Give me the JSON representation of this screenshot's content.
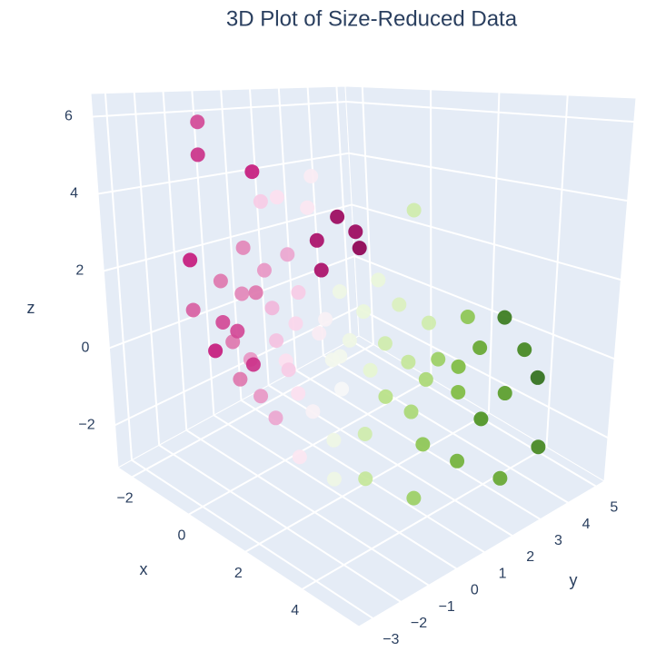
{
  "chart_data": {
    "type": "scatter3d",
    "title": "3D Plot of Size-Reduced Data",
    "x_label": "x",
    "y_label": "y",
    "z_label": "z",
    "xlim": [
      -2.5,
      6
    ],
    "ylim": [
      -3.5,
      5.3
    ],
    "zlim": [
      -3.1,
      6.6
    ],
    "xticks": [
      {
        "value": -2,
        "label": "−2"
      },
      0,
      2,
      4
    ],
    "yticks": [
      {
        "value": -3,
        "label": "−3"
      },
      {
        "value": -2,
        "label": "−2"
      },
      {
        "value": -1,
        "label": "−1"
      },
      0,
      1,
      2,
      3,
      4,
      5
    ],
    "zticks": [
      {
        "value": -2,
        "label": "−2"
      },
      0,
      2,
      4,
      6
    ],
    "grid": true,
    "colorscale": [
      "#8e0152",
      "#c51b7d",
      "#de77ae",
      "#f1b6da",
      "#fde0ef",
      "#f7f7f7",
      "#e6f5d0",
      "#b8e186",
      "#7fbc41",
      "#4d9221",
      "#276419"
    ],
    "clim": [
      -1,
      1
    ],
    "series": [
      {
        "x": [
          -1.5,
          -2.0,
          -0.5,
          -1.0,
          -0.2,
          0.5,
          0.8,
          1.2,
          0.3,
          -1.8,
          -1.2,
          -0.8,
          -1.5,
          -1.0,
          -0.5,
          -1.2,
          -0.3,
          0.0,
          -0.8,
          0.2,
          -1.5,
          0.5,
          -0.5,
          0.0,
          0.3,
          0.6,
          -0.2,
          0.8,
          1.0,
          0.2,
          -1.0,
          1.5,
          0.8,
          -0.6,
          0.4,
          1.0,
          1.5,
          1.2,
          2.0,
          1.8,
          1.0,
          2.2,
          1.3,
          0.5,
          1.6,
          2.5,
          -0.3,
          0.2,
          2.5,
          2.8,
          3.0,
          2.2,
          3.2,
          3.5,
          2.8,
          3.8,
          4.0,
          4.2,
          3.5,
          4.5,
          4.8,
          5.0,
          5.2,
          4.5,
          5.5,
          4.0,
          3.0,
          2.5,
          3.8,
          2.0,
          1.8,
          2.2,
          3.3,
          4.6,
          5.8
        ],
        "y": [
          -1.0,
          -0.5,
          -0.3,
          0.5,
          0.2,
          1.5,
          1.8,
          1.5,
          1.0,
          -1.2,
          -0.8,
          -0.5,
          -1.5,
          -1.0,
          -1.2,
          -0.3,
          -0.8,
          -1.5,
          -0.2,
          -1.0,
          -0.8,
          -0.8,
          0.0,
          -0.3,
          -0.5,
          0.0,
          0.5,
          0.6,
          -0.5,
          0.3,
          0.2,
          -1.0,
          -0.7,
          -0.6,
          -0.2,
          0.5,
          0.2,
          0.8,
          0.0,
          0.5,
          1.0,
          -0.5,
          -0.3,
          0.8,
          1.2,
          -0.8,
          1.5,
          0.8,
          1.0,
          1.5,
          0.5,
          1.8,
          1.2,
          1.8,
          2.2,
          1.0,
          2.0,
          2.5,
          2.8,
          1.5,
          2.8,
          3.2,
          3.5,
          3.0,
          2.0,
          0.5,
          -0.2,
          0.3,
          2.2,
          2.5,
          1.5,
          0.8,
          1.6,
          2.2,
          3.0
        ],
        "z": [
          5.8,
          4.8,
          4.5,
          3.5,
          3.8,
          3.2,
          2.8,
          2.5,
          2.6,
          2.0,
          1.5,
          1.2,
          0.8,
          0.5,
          0.2,
          0.0,
          -0.3,
          -0.5,
          -0.8,
          -1.0,
          -0.5,
          -1.5,
          1.8,
          1.0,
          0.3,
          1.5,
          2.2,
          2.0,
          -0.8,
          0.5,
          1.0,
          -2.0,
          0.0,
          2.5,
          -0.5,
          0.8,
          0.0,
          1.5,
          -0.5,
          0.5,
          -0.3,
          -1.5,
          -1.2,
          0.2,
          1.0,
          -2.2,
          4.2,
          3.5,
          0.5,
          0.0,
          -0.5,
          1.2,
          -1.0,
          0.2,
          0.8,
          -1.5,
          -0.5,
          0.5,
          1.0,
          -1.8,
          -0.5,
          0.5,
          -0.2,
          1.2,
          -2.0,
          -2.5,
          -2.2,
          -1.5,
          0.0,
          3.5,
          1.8,
          -0.2,
          -0.3,
          -1.0,
          -1.5
        ],
        "color_values": [
          -0.7,
          -0.75,
          -0.8,
          -0.3,
          -0.2,
          -0.95,
          -0.95,
          -1.0,
          -0.9,
          -0.8,
          -0.6,
          -0.55,
          -0.65,
          -0.7,
          -0.6,
          -0.7,
          -0.5,
          -0.6,
          -0.75,
          -0.5,
          -0.8,
          -0.45,
          -0.5,
          -0.4,
          -0.35,
          -0.3,
          -0.45,
          -0.9,
          -0.2,
          -0.25,
          -0.6,
          -0.15,
          -0.2,
          -0.55,
          -0.3,
          -0.05,
          0.05,
          0.1,
          0.0,
          0.1,
          0.05,
          0.1,
          -0.05,
          -0.1,
          0.15,
          0.1,
          -0.1,
          -0.15,
          0.3,
          0.35,
          0.4,
          0.25,
          0.45,
          0.5,
          0.3,
          0.55,
          0.6,
          0.7,
          0.55,
          0.65,
          0.75,
          0.85,
          0.95,
          0.9,
          0.7,
          0.5,
          0.35,
          0.3,
          0.6,
          0.3,
          0.15,
          0.2,
          0.45,
          0.8,
          0.85
        ]
      }
    ]
  }
}
